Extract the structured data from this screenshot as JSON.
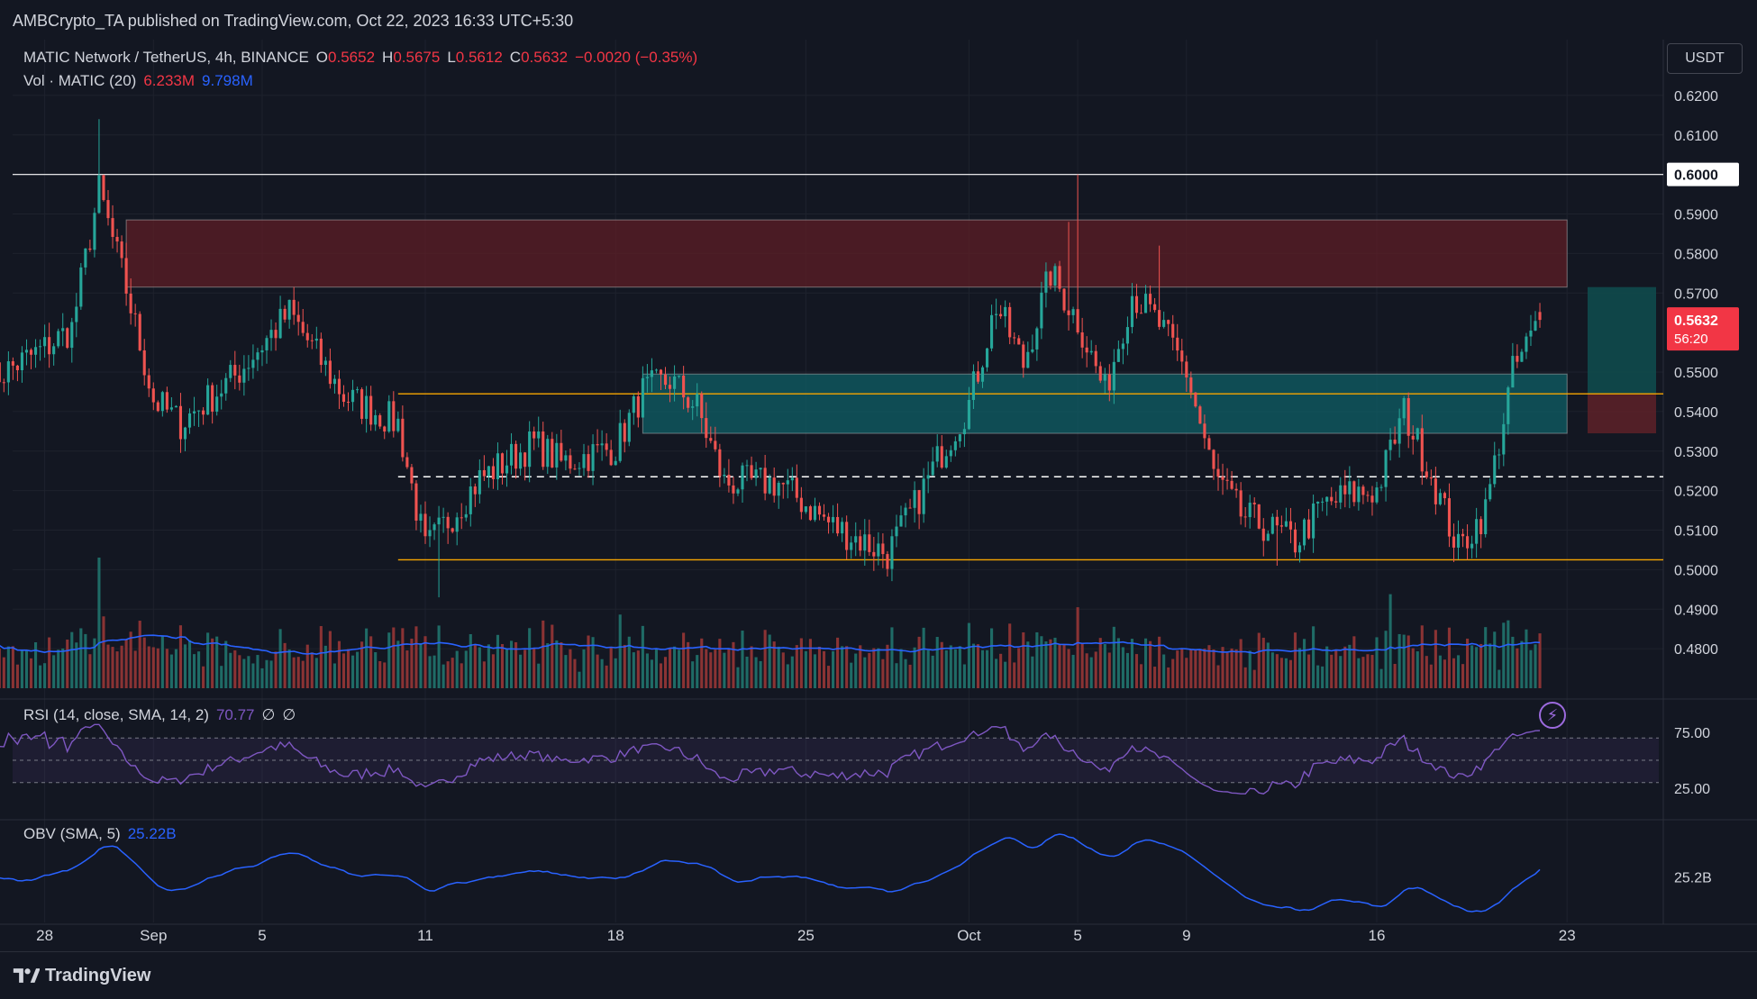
{
  "publisher": {
    "text": "AMBCrypto_TA published on TradingView.com, Oct 22, 2023 16:33 UTC+5:30"
  },
  "legend": {
    "symbol": "MATIC Network / TetherUS, 4h, BINANCE",
    "o_label": "O",
    "o_value": "0.5652",
    "h_label": "H",
    "h_value": "0.5675",
    "l_label": "L",
    "l_value": "0.5612",
    "c_label": "C",
    "c_value": "0.5632",
    "change": "−0.0020 (−0.35%)",
    "vol_label": "Vol · MATIC (20)",
    "vol_value": "6.233M",
    "vol_ma_value": "9.798M"
  },
  "currency_button": "USDT",
  "rsi": {
    "label": "RSI (14, close, SMA, 14, 2)",
    "value": "70.77",
    "extra1": "∅",
    "extra2": "∅"
  },
  "obv": {
    "label": "OBV (SMA, 5)",
    "value": "25.22B"
  },
  "footer": {
    "brand": "TradingView"
  },
  "colors": {
    "background": "#131722",
    "up": "#26a69a",
    "down": "#ef5350",
    "resistance_zone": "#5d1e25",
    "support_zone": "#0f5a61",
    "orange_line": "#f7a600",
    "rsi_line": "#7e57c2",
    "obv_line": "#2962ff"
  },
  "chart_data": [
    {
      "type": "candlestick",
      "name": "price",
      "interval": "4h",
      "y_scale": [
        0.47,
        0.625
      ],
      "y_ticks": [
        "0.6200",
        "0.6100",
        "0.6000",
        "0.5900",
        "0.5800",
        "0.5700",
        "0.5632",
        "0.5500",
        "0.5400",
        "0.5300",
        "0.5200",
        "0.5100",
        "0.5000",
        "0.4900",
        "0.4800"
      ],
      "x_ticks": [
        "28",
        "Sep",
        "5",
        "11",
        "18",
        "25",
        "Oct",
        "5",
        "9",
        "16",
        "23"
      ],
      "last_price": "0.5632",
      "countdown": "56:20",
      "horizontal_line_label": "0.6000",
      "horizontal_levels": [
        0.6,
        0.5445,
        0.5235,
        0.5025
      ],
      "zones": [
        {
          "kind": "resistance",
          "from_date": "Aug 31",
          "to_date": "Oct 23",
          "low": 0.5715,
          "high": 0.5885
        },
        {
          "kind": "support",
          "from_date": "Sep 19",
          "to_date": "Oct 23",
          "low": 0.5345,
          "high": 0.5495
        }
      ],
      "anchors": [
        [
          "Aug 26",
          0.548
        ],
        [
          "Aug 28",
          0.556
        ],
        [
          "Aug 29",
          0.561
        ],
        [
          "Aug 30",
          0.596
        ],
        [
          "Aug 31",
          0.571
        ],
        [
          "Sep 1",
          0.543
        ],
        [
          "Sep 2",
          0.537
        ],
        [
          "Sep 4",
          0.549
        ],
        [
          "Sep 6",
          0.565
        ],
        [
          "Sep 8",
          0.544
        ],
        [
          "Sep 10",
          0.537
        ],
        [
          "Sep 11",
          0.505
        ],
        [
          "Sep 13",
          0.523
        ],
        [
          "Sep 15",
          0.532
        ],
        [
          "Sep 16",
          0.527
        ],
        [
          "Sep 18",
          0.531
        ],
        [
          "Sep 19",
          0.545
        ],
        [
          "Sep 20",
          0.548
        ],
        [
          "Sep 21",
          0.541
        ],
        [
          "Sep 22",
          0.522
        ],
        [
          "Sep 24",
          0.522
        ],
        [
          "Sep 26",
          0.511
        ],
        [
          "Sep 28",
          0.504
        ],
        [
          "Sep 29",
          0.516
        ],
        [
          "Sep 30",
          0.53
        ],
        [
          "Oct 1",
          0.542
        ],
        [
          "Oct 2",
          0.567
        ],
        [
          "Oct 3",
          0.552
        ],
        [
          "Oct 4",
          0.575
        ],
        [
          "Oct 5",
          0.563
        ],
        [
          "Oct 6",
          0.545
        ],
        [
          "Oct 7",
          0.57
        ],
        [
          "Oct 8",
          0.562
        ],
        [
          "Oct 9",
          0.55
        ],
        [
          "Oct 10",
          0.524
        ],
        [
          "Oct 11",
          0.514
        ],
        [
          "Oct 13",
          0.507
        ],
        [
          "Oct 14",
          0.516
        ],
        [
          "Oct 15",
          0.519
        ],
        [
          "Oct 16",
          0.52
        ],
        [
          "Oct 17",
          0.54
        ],
        [
          "Oct 18",
          0.524
        ],
        [
          "Oct 19",
          0.505
        ],
        [
          "Oct 20",
          0.515
        ],
        [
          "Oct 21",
          0.55
        ],
        [
          "Oct 22",
          0.563
        ]
      ]
    },
    {
      "type": "bar",
      "name": "volume",
      "note": "per-candle volume bars with 20-period moving average"
    },
    {
      "type": "line",
      "name": "RSI",
      "y_ticks": [
        "75.00",
        "25.00"
      ],
      "bands": [
        30,
        50,
        70
      ],
      "last_value": 70.77
    },
    {
      "type": "line",
      "name": "OBV",
      "y_ticks": [
        "25.2B"
      ],
      "last_value": "25.22B"
    }
  ]
}
